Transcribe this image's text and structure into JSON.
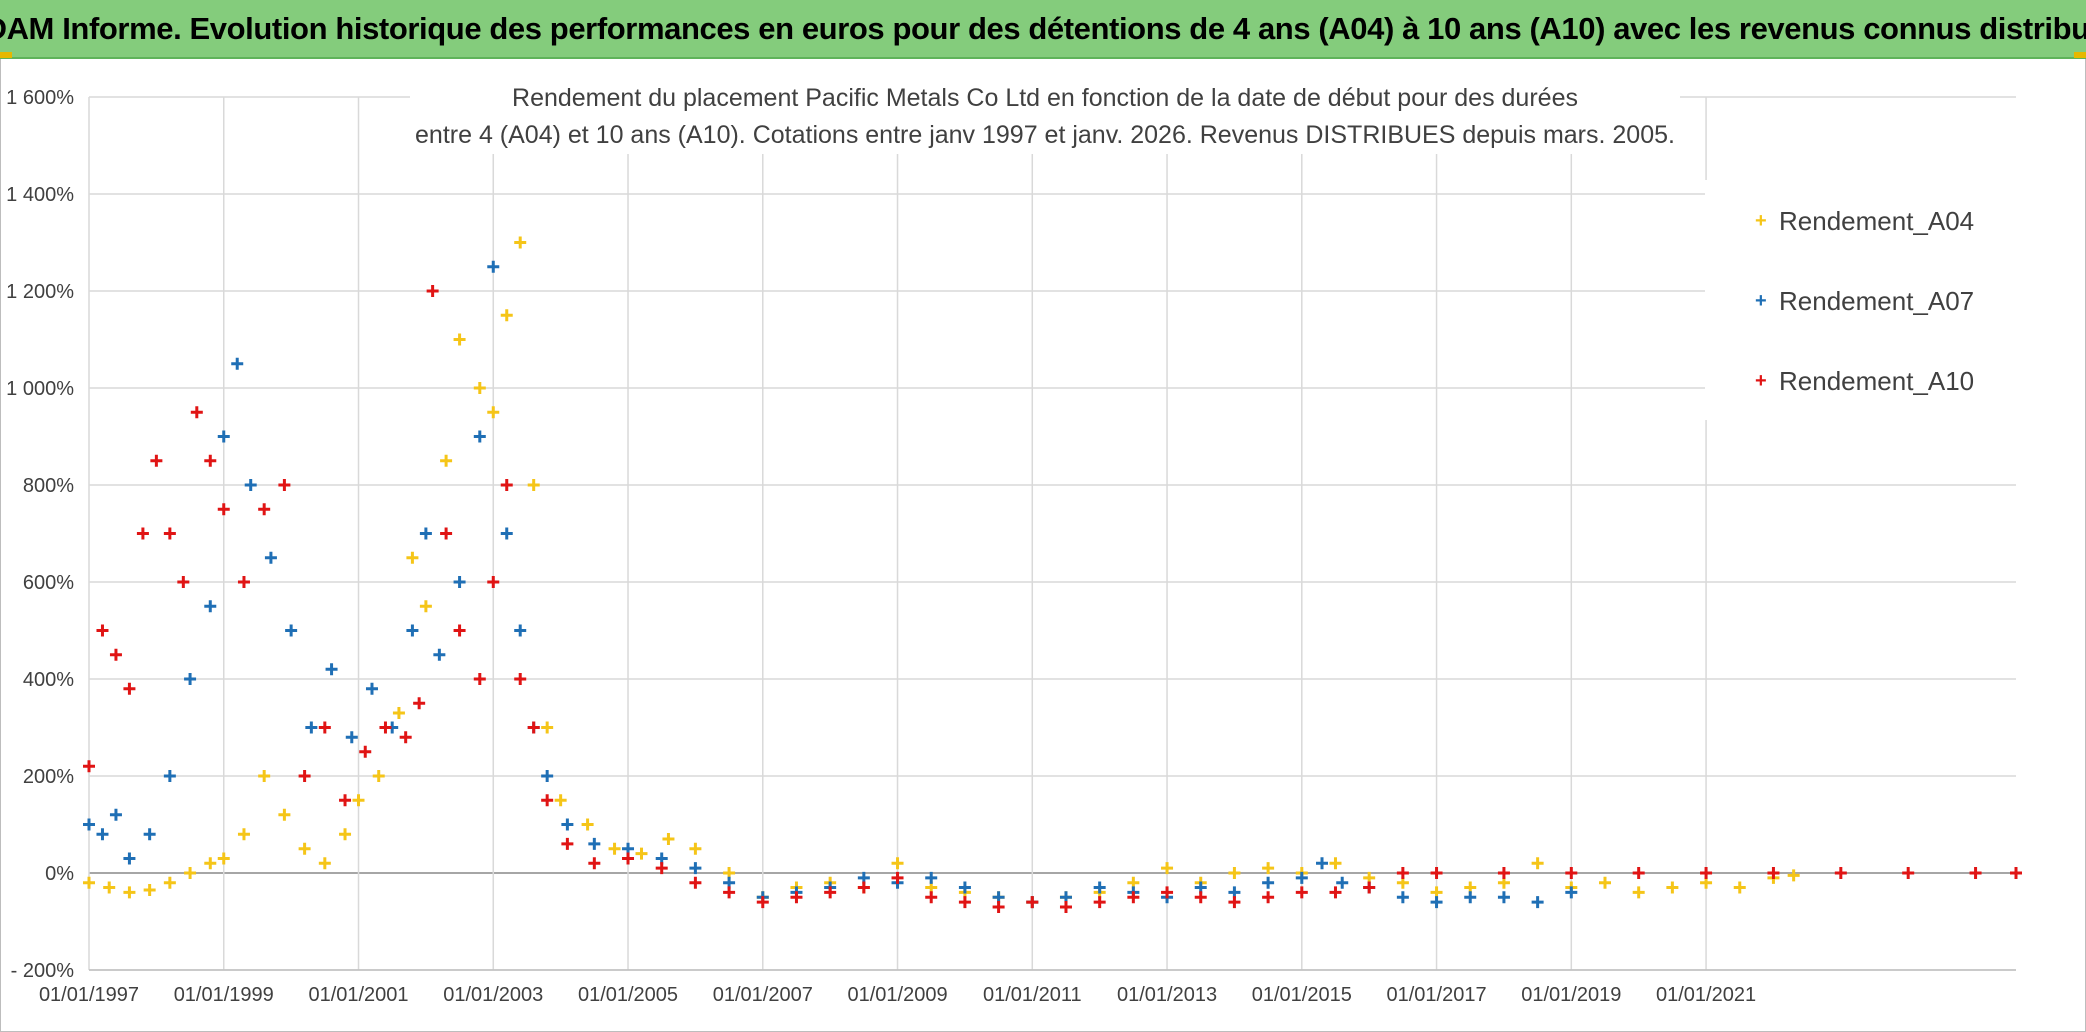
{
  "header": {
    "banner_text": "ADAM Informe. Evolution historique des performances en euros pour des détentions de 4 ans (A04) à 10 ans (A10) avec les revenus connus distribués"
  },
  "chart_data": {
    "type": "scatter",
    "title_line1": "Rendement du placement Pacific Metals Co Ltd en fonction de la date de début pour des durées",
    "title_line2": "entre 4 (A04) et 10 ans (A10). Cotations entre janv 1997 et janv. 2026. Revenus DISTRIBUES depuis mars. 2005.",
    "xlabel": "",
    "ylabel": "",
    "xlim": [
      1997.0,
      2025.6
    ],
    "ylim": [
      -200,
      1600
    ],
    "y_ticks": [
      -200,
      0,
      200,
      400,
      600,
      800,
      1000,
      1200,
      1400,
      1600
    ],
    "y_tick_labels": [
      "- 200%",
      "0%",
      "200%",
      "400%",
      "600%",
      "800%",
      "1 000%",
      "1 200%",
      "1 400%",
      "1 600%"
    ],
    "x_ticks": [
      1997,
      1999,
      2001,
      2003,
      2005,
      2007,
      2009,
      2011,
      2013,
      2015,
      2017,
      2019,
      2021
    ],
    "x_tick_labels": [
      "01/01/1997",
      "01/01/1999",
      "01/01/2001",
      "01/01/2003",
      "01/01/2005",
      "01/01/2007",
      "01/01/2009",
      "01/01/2011",
      "01/01/2013",
      "01/01/2015",
      "01/01/2017",
      "01/01/2019",
      "01/01/2021"
    ],
    "grid": true,
    "marker": "+",
    "legend_position": "top-right",
    "series": [
      {
        "name": "Rendement_A04",
        "color": "#f5c518",
        "x": [
          1997.0,
          1997.3,
          1997.6,
          1997.9,
          1998.2,
          1998.5,
          1998.8,
          1999.0,
          1999.3,
          1999.6,
          1999.9,
          2000.2,
          2000.5,
          2000.8,
          2001.0,
          2001.3,
          2001.6,
          2001.8,
          2002.0,
          2002.3,
          2002.5,
          2002.8,
          2003.0,
          2003.2,
          2003.4,
          2003.6,
          2003.8,
          2004.0,
          2004.4,
          2004.8,
          2005.2,
          2005.6,
          2006.0,
          2006.5,
          2007.0,
          2007.5,
          2008.0,
          2008.5,
          2009.0,
          2009.5,
          2010.0,
          2010.5,
          2011.0,
          2011.5,
          2012.0,
          2012.5,
          2013.0,
          2013.5,
          2014.0,
          2014.5,
          2015.0,
          2015.5,
          2016.0,
          2016.5,
          2017.0,
          2017.5,
          2018.0,
          2018.5,
          2019.0,
          2019.5,
          2020.0,
          2020.5,
          2021.0,
          2021.5,
          2022.0,
          2022.3
        ],
        "y": [
          -20,
          -30,
          -40,
          -35,
          -20,
          0,
          20,
          30,
          80,
          200,
          120,
          50,
          20,
          80,
          150,
          200,
          330,
          650,
          550,
          850,
          1100,
          1000,
          950,
          1150,
          1300,
          800,
          300,
          150,
          100,
          50,
          40,
          70,
          50,
          0,
          -50,
          -30,
          -20,
          -30,
          20,
          -30,
          -40,
          -50,
          -60,
          -50,
          -40,
          -20,
          10,
          -20,
          0,
          10,
          0,
          20,
          -10,
          -20,
          -40,
          -30,
          -20,
          20,
          -30,
          -20,
          -40,
          -30,
          -20,
          -30,
          -10,
          -5
        ]
      },
      {
        "name": "Rendement_A07",
        "color": "#1f6fb5",
        "x": [
          1997.0,
          1997.2,
          1997.4,
          1997.6,
          1997.9,
          1998.2,
          1998.5,
          1998.8,
          1999.0,
          1999.2,
          1999.4,
          1999.7,
          2000.0,
          2000.3,
          2000.6,
          2000.9,
          2001.2,
          2001.5,
          2001.8,
          2002.0,
          2002.2,
          2002.5,
          2002.8,
          2003.0,
          2003.2,
          2003.4,
          2003.6,
          2003.8,
          2004.1,
          2004.5,
          2005.0,
          2005.5,
          2006.0,
          2006.5,
          2007.0,
          2007.5,
          2008.0,
          2008.5,
          2009.0,
          2009.5,
          2010.0,
          2010.5,
          2011.0,
          2011.5,
          2012.0,
          2012.5,
          2013.0,
          2013.5,
          2014.0,
          2014.5,
          2015.0,
          2015.3,
          2015.6,
          2016.0,
          2016.5,
          2017.0,
          2017.5,
          2018.0,
          2018.5,
          2019.0
        ],
        "y": [
          100,
          80,
          120,
          30,
          80,
          200,
          400,
          550,
          900,
          1050,
          800,
          650,
          500,
          300,
          420,
          280,
          380,
          300,
          500,
          700,
          450,
          600,
          900,
          1250,
          700,
          500,
          300,
          200,
          100,
          60,
          50,
          30,
          10,
          -20,
          -50,
          -40,
          -30,
          -10,
          -20,
          -10,
          -30,
          -50,
          -60,
          -50,
          -30,
          -40,
          -50,
          -30,
          -40,
          -20,
          -10,
          20,
          -20,
          -30,
          -50,
          -60,
          -50,
          -50,
          -60,
          -40
        ]
      },
      {
        "name": "Rendement_A10",
        "color": "#e01414",
        "x": [
          1997.0,
          1997.2,
          1997.4,
          1997.6,
          1997.8,
          1998.0,
          1998.2,
          1998.4,
          1998.6,
          1998.8,
          1999.0,
          1999.3,
          1999.6,
          1999.9,
          2000.2,
          2000.5,
          2000.8,
          2001.1,
          2001.4,
          2001.7,
          2001.9,
          2002.1,
          2002.3,
          2002.5,
          2002.8,
          2003.0,
          2003.2,
          2003.4,
          2003.6,
          2003.8,
          2004.1,
          2004.5,
          2005.0,
          2005.5,
          2006.0,
          2006.5,
          2007.0,
          2007.5,
          2008.0,
          2008.5,
          2009.0,
          2009.5,
          2010.0,
          2010.5,
          2011.0,
          2011.5,
          2012.0,
          2012.5,
          2013.0,
          2013.5,
          2014.0,
          2014.5,
          2015.0,
          2015.5,
          2016.0,
          2016.5,
          2017.0,
          2018.0,
          2019.0,
          2020.0,
          2021.0,
          2022.0,
          2023.0,
          2024.0,
          2025.0,
          2025.6
        ],
        "y": [
          220,
          500,
          450,
          380,
          700,
          850,
          700,
          600,
          950,
          850,
          750,
          600,
          750,
          800,
          200,
          300,
          150,
          250,
          300,
          280,
          350,
          1200,
          700,
          500,
          400,
          600,
          800,
          400,
          300,
          150,
          60,
          20,
          30,
          10,
          -20,
          -40,
          -60,
          -50,
          -40,
          -30,
          -10,
          -50,
          -60,
          -70,
          -60,
          -70,
          -60,
          -50,
          -40,
          -50,
          -60,
          -50,
          -40,
          -40,
          -30,
          0,
          0,
          0,
          0,
          0,
          0,
          0,
          0,
          0,
          0,
          0
        ]
      }
    ]
  }
}
